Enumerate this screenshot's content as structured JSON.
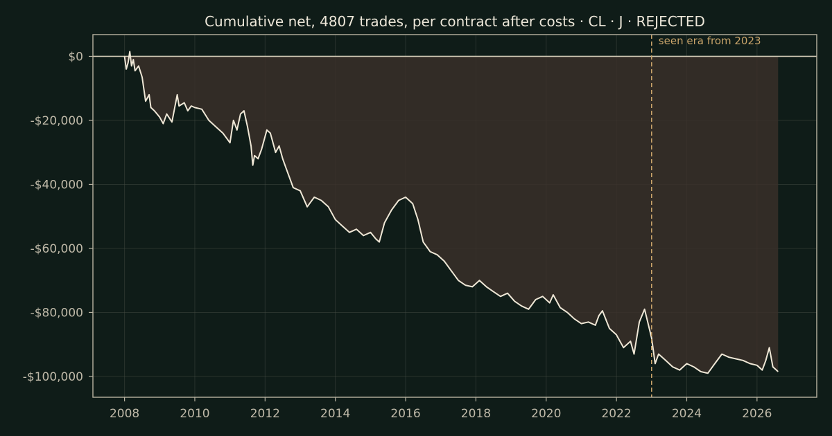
{
  "chart_data": {
    "type": "line",
    "title": "Cumulative net, 4807 trades, per contract after costs  ·  CL · J · REJECTED",
    "xlabel": "",
    "ylabel": "",
    "xlim": [
      2007.1,
      2027.7
    ],
    "ylim": [
      -106500,
      6800
    ],
    "x_ticks": [
      2008,
      2010,
      2012,
      2014,
      2016,
      2018,
      2020,
      2022,
      2024,
      2026
    ],
    "x_tick_labels": [
      "2008",
      "2010",
      "2012",
      "2014",
      "2016",
      "2018",
      "2020",
      "2022",
      "2024",
      "2026"
    ],
    "y_ticks": [
      0,
      -20000,
      -40000,
      -60000,
      -80000,
      -100000
    ],
    "y_tick_labels": [
      "$0",
      "-$20,000",
      "-$40,000",
      "-$60,000",
      "-$80,000",
      "-$100,000"
    ],
    "grid": true,
    "reference_line_y": 0,
    "marker": {
      "x": 2023.0,
      "label": "seen era from 2023"
    },
    "colors": {
      "background": "#0f1c18",
      "line": "#efe7d6",
      "fill": "#3a302a",
      "marker": "#c9a46a",
      "text": "#ece6d8",
      "tick_text": "#bfb9a8"
    },
    "series": [
      {
        "x": [
          2008.0,
          2008.05,
          2008.1,
          2008.15,
          2008.2,
          2008.25,
          2008.3,
          2008.4,
          2008.5,
          2008.6,
          2008.7,
          2008.75,
          2008.85,
          2009.0,
          2009.1,
          2009.2,
          2009.35,
          2009.5,
          2009.55,
          2009.7,
          2009.8,
          2009.9,
          2010.0,
          2010.2,
          2010.4,
          2010.6,
          2010.8,
          2011.0,
          2011.1,
          2011.2,
          2011.3,
          2011.4,
          2011.5,
          2011.6,
          2011.65,
          2011.7,
          2011.8,
          2011.9,
          2012.05,
          2012.15,
          2012.3,
          2012.4,
          2012.5,
          2012.6,
          2012.8,
          2013.0,
          2013.2,
          2013.4,
          2013.6,
          2013.8,
          2014.0,
          2014.2,
          2014.4,
          2014.6,
          2014.8,
          2015.0,
          2015.15,
          2015.25,
          2015.4,
          2015.6,
          2015.8,
          2016.0,
          2016.2,
          2016.35,
          2016.5,
          2016.7,
          2016.9,
          2017.1,
          2017.3,
          2017.5,
          2017.7,
          2017.9,
          2018.1,
          2018.3,
          2018.5,
          2018.7,
          2018.9,
          2019.1,
          2019.3,
          2019.5,
          2019.7,
          2019.9,
          2020.1,
          2020.2,
          2020.4,
          2020.6,
          2020.8,
          2021.0,
          2021.2,
          2021.4,
          2021.5,
          2021.6,
          2021.8,
          2022.0,
          2022.1,
          2022.2,
          2022.4,
          2022.5,
          2022.65,
          2022.8,
          2023.0,
          2023.1,
          2023.2,
          2023.4,
          2023.6,
          2023.8,
          2024.0,
          2024.2,
          2024.4,
          2024.6,
          2024.8,
          2025.0,
          2025.2,
          2025.4,
          2025.6,
          2025.8,
          2026.0,
          2026.15,
          2026.25,
          2026.35,
          2026.45,
          2026.6
        ],
        "values": [
          0,
          -4000,
          -2000,
          1500,
          -3000,
          -1000,
          -4500,
          -3000,
          -6500,
          -14000,
          -12000,
          -16000,
          -17000,
          -19000,
          -21000,
          -18000,
          -20500,
          -12000,
          -15500,
          -14500,
          -17000,
          -15500,
          -16000,
          -16500,
          -20000,
          -22000,
          -24000,
          -27000,
          -20000,
          -23000,
          -18000,
          -17000,
          -22000,
          -28000,
          -34000,
          -31000,
          -32000,
          -29000,
          -23000,
          -24000,
          -30000,
          -28000,
          -32000,
          -35000,
          -41000,
          -42000,
          -47000,
          -44000,
          -45000,
          -47000,
          -51000,
          -53000,
          -55000,
          -54000,
          -56000,
          -55000,
          -57000,
          -58000,
          -52000,
          -48000,
          -45000,
          -44000,
          -46000,
          -51000,
          -58000,
          -61000,
          -62000,
          -64000,
          -67000,
          -70000,
          -71500,
          -72000,
          -70000,
          -72000,
          -73500,
          -75000,
          -74000,
          -76500,
          -78000,
          -79000,
          -76000,
          -75000,
          -77000,
          -74500,
          -78500,
          -80000,
          -82000,
          -83500,
          -83000,
          -84000,
          -81000,
          -79500,
          -85000,
          -87000,
          -89000,
          -91000,
          -89000,
          -93000,
          -83000,
          -79000,
          -88000,
          -96000,
          -93000,
          -95000,
          -97000,
          -98000,
          -96000,
          -97000,
          -98500,
          -99000,
          -96000,
          -93000,
          -94000,
          -94500,
          -95000,
          -96000,
          -96500,
          -98000,
          -95000,
          -91000,
          -97000,
          -98500
        ]
      }
    ]
  }
}
